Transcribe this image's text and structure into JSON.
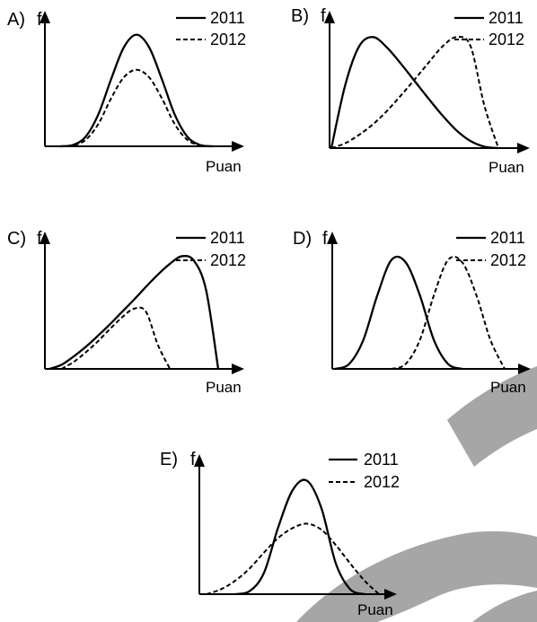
{
  "watermark_color": "#a6a6a6",
  "chart_data": [
    {
      "type": "line",
      "label": "A)",
      "ylabel": "f",
      "xlabel": "Puan",
      "series": [
        {
          "name": "2011",
          "style": "solid",
          "values": [
            0,
            0.2,
            1.5,
            5.0,
            10.5,
            15.5,
            17.5,
            15.5,
            10.5,
            5.0,
            1.5,
            0.2,
            0
          ]
        },
        {
          "name": "2012",
          "style": "dashed",
          "values": [
            0,
            0.15,
            1.0,
            3.5,
            7.5,
            10.8,
            12.0,
            10.8,
            7.5,
            3.5,
            1.0,
            0.15,
            0
          ]
        }
      ]
    },
    {
      "type": "line",
      "label": "B)",
      "ylabel": "f",
      "xlabel": "Puan",
      "series": [
        {
          "name": "2011",
          "style": "solid",
          "values": [
            0,
            9.0,
            14.5,
            15.8,
            14.3,
            12.0,
            9.5,
            7.0,
            4.6,
            2.5,
            1.0,
            0.2,
            0
          ]
        },
        {
          "name": "2012",
          "style": "dashed",
          "values": [
            0,
            0.7,
            1.9,
            3.4,
            5.3,
            7.5,
            9.8,
            12.2,
            14.5,
            15.8,
            14.5,
            6.0,
            0
          ]
        }
      ]
    },
    {
      "type": "line",
      "label": "C)",
      "ylabel": "f",
      "xlabel": "Puan",
      "series": [
        {
          "name": "2011",
          "style": "solid",
          "values": [
            0,
            0.6,
            1.8,
            3.2,
            4.8,
            6.5,
            8.3,
            10.1,
            12.0,
            13.8,
            15.4,
            16.5,
            15.8,
            11.5,
            0
          ]
        },
        {
          "name": "2012",
          "style": "dashed",
          "values": [
            null,
            0,
            1.0,
            2.4,
            4.0,
            5.8,
            7.5,
            8.8,
            8.4,
            3.5,
            0,
            null,
            null,
            null,
            null
          ]
        }
      ]
    },
    {
      "type": "line",
      "label": "D)",
      "ylabel": "f",
      "xlabel": "Puan",
      "series": [
        {
          "name": "2011",
          "style": "solid",
          "values": [
            0,
            0.6,
            3.5,
            9.0,
            13.3,
            13.0,
            9.0,
            3.5,
            0.6,
            0,
            null,
            null,
            null
          ]
        },
        {
          "name": "2012",
          "style": "dashed",
          "values": [
            null,
            null,
            null,
            null,
            0,
            0.6,
            3.5,
            9.0,
            13.3,
            13.0,
            9.0,
            3.5,
            0
          ]
        }
      ]
    },
    {
      "type": "line",
      "label": "E)",
      "ylabel": "f",
      "xlabel": "Puan",
      "series": [
        {
          "name": "2011",
          "style": "solid",
          "values": [
            null,
            null,
            0,
            0.5,
            3.5,
            11.0,
            17.0,
            18.5,
            14.0,
            5.0,
            0.8,
            0,
            null
          ]
        },
        {
          "name": "2012",
          "style": "dashed",
          "values": [
            0,
            0.8,
            2.2,
            4.2,
            6.8,
            9.2,
            10.8,
            11.5,
            10.5,
            8.0,
            5.0,
            2.2,
            0
          ]
        }
      ]
    }
  ]
}
